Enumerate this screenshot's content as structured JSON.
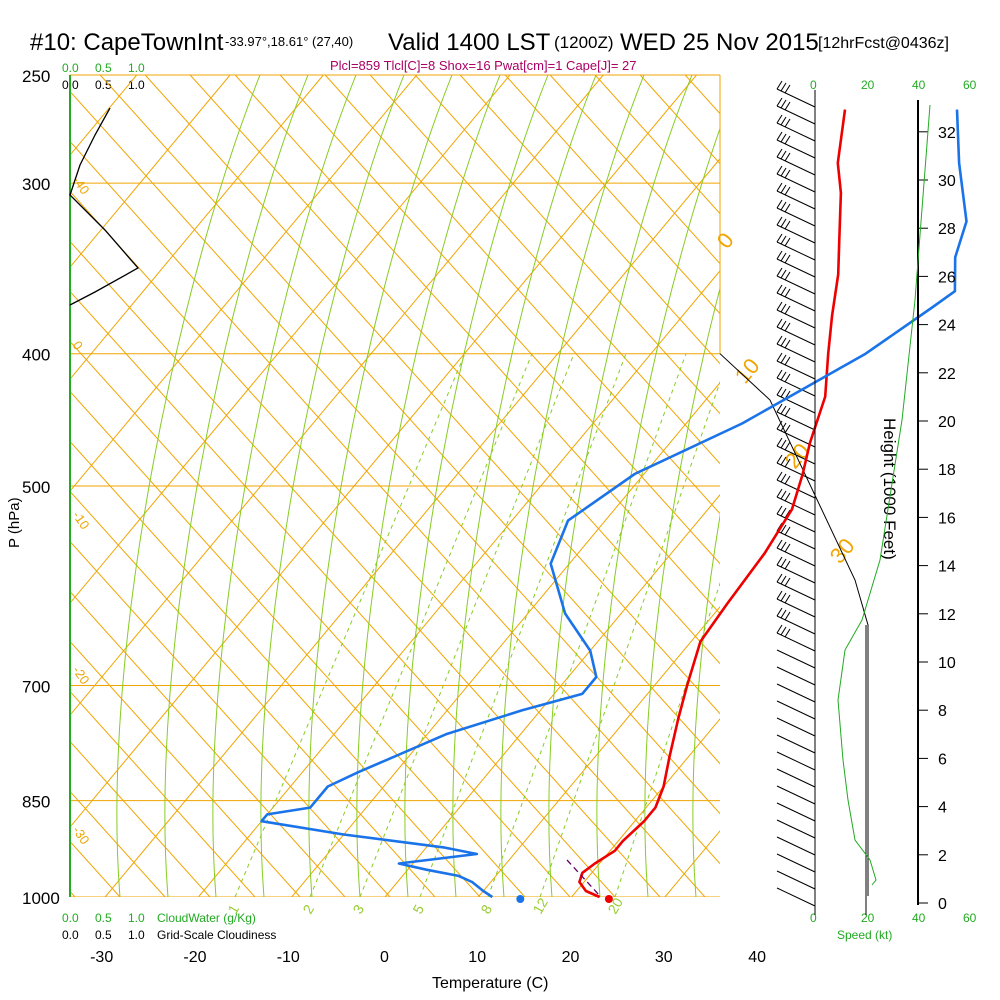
{
  "header": {
    "station": "#10: CapeTownInt",
    "coords": "-33.97°,18.61° (27,40)",
    "valid": "Valid 1400 LST",
    "utc": "(1200Z)",
    "date": "WED 25 Nov 2015",
    "fcst": "[12hrFcst@0436z]",
    "indices": "Plcl=859 Tlcl[C]=8 Shox=16 Pwat[cm]=1 Cape[J]= 27"
  },
  "axes": {
    "xlabel": "Temperature (C)",
    "ylabel": "P (hPa)",
    "right_label": "Height (1000 Feet)",
    "x_ticks": [
      "-30",
      "-20",
      "-10",
      "0",
      "10",
      "20",
      "30",
      "40"
    ],
    "p_ticks": [
      "250",
      "300",
      "400",
      "500",
      "700",
      "850",
      "1000"
    ],
    "h_ticks": [
      "0",
      "2",
      "4",
      "6",
      "8",
      "10",
      "12",
      "14",
      "16",
      "18",
      "20",
      "22",
      "24",
      "26",
      "28",
      "30",
      "32"
    ],
    "speed_ticks": [
      "0",
      "20",
      "40",
      "60"
    ],
    "speed_label": "Speed (kt)"
  },
  "legend": {
    "cw_ticks": [
      "0.0",
      "0.5",
      "1.0"
    ],
    "cw_label": "CloudWater (g/Kg)",
    "cl_ticks": [
      "0.0",
      "0.5",
      "1.0"
    ],
    "cl_label": "Grid-Scale Cloudiness"
  },
  "mixing_labels": [
    "1",
    "2",
    "3",
    "5",
    "8",
    "12",
    "20"
  ],
  "dryad_labels_left": [
    "-40",
    "0",
    "-10",
    "-20",
    "-30"
  ],
  "dryad_labels_right": [
    "0",
    "10",
    "20",
    "30"
  ],
  "colors": {
    "temp": "#ee0000",
    "dew": "#1a73e8",
    "grid": "#f0a500",
    "moist": "#88cc22",
    "green": "#22aa22"
  },
  "chart_data": {
    "type": "line",
    "title": "#10: CapeTownInt Valid 1400 LST (1200Z) WED 25 Nov 2015",
    "xlabel": "Temperature (C)",
    "ylabel": "P (hPa)",
    "xlim": [
      -35,
      45
    ],
    "ylim": [
      1000,
      250
    ],
    "series": [
      {
        "name": "Temperature",
        "points": [
          [
            23,
            1000
          ],
          [
            21,
            990
          ],
          [
            19.5,
            975
          ],
          [
            19,
            960
          ],
          [
            19.5,
            945
          ],
          [
            20.5,
            925
          ],
          [
            20.5,
            910
          ],
          [
            21,
            880
          ],
          [
            21,
            860
          ],
          [
            20,
            830
          ],
          [
            18,
            790
          ],
          [
            15.5,
            740
          ],
          [
            13.5,
            700
          ],
          [
            11,
            650
          ],
          [
            10.5,
            610
          ],
          [
            10,
            560
          ],
          [
            9,
            520
          ],
          [
            7,
            490
          ],
          [
            5,
            465
          ],
          [
            2.5,
            430
          ],
          [
            -1,
            400
          ],
          [
            -4,
            375
          ],
          [
            -7,
            350
          ],
          [
            -10,
            330
          ],
          [
            -14,
            305
          ],
          [
            -17,
            290
          ],
          [
            -21,
            265
          ]
        ]
      },
      {
        "name": "Dewpoint",
        "points": [
          [
            11.5,
            1000
          ],
          [
            10,
            990
          ],
          [
            8,
            975
          ],
          [
            6,
            965
          ],
          [
            2,
            955
          ],
          [
            -1.5,
            945
          ],
          [
            6,
            930
          ],
          [
            2,
            920
          ],
          [
            -10,
            900
          ],
          [
            -20,
            880
          ],
          [
            -20,
            870
          ],
          [
            -16,
            860
          ],
          [
            -16,
            830
          ],
          [
            -14,
            810
          ],
          [
            -8,
            760
          ],
          [
            -2,
            730
          ],
          [
            3,
            710
          ],
          [
            3,
            690
          ],
          [
            0,
            660
          ],
          [
            -6,
            620
          ],
          [
            -12,
            570
          ],
          [
            -14,
            530
          ],
          [
            -11,
            490
          ],
          [
            -4,
            450
          ],
          [
            3,
            400
          ],
          [
            6,
            370
          ],
          [
            7,
            360
          ],
          [
            4,
            340
          ],
          [
            2,
            320
          ],
          [
            -4,
            290
          ],
          [
            -9,
            265
          ]
        ]
      }
    ],
    "surface_points": {
      "temperature": 24,
      "dewpoint": 14.5
    }
  }
}
